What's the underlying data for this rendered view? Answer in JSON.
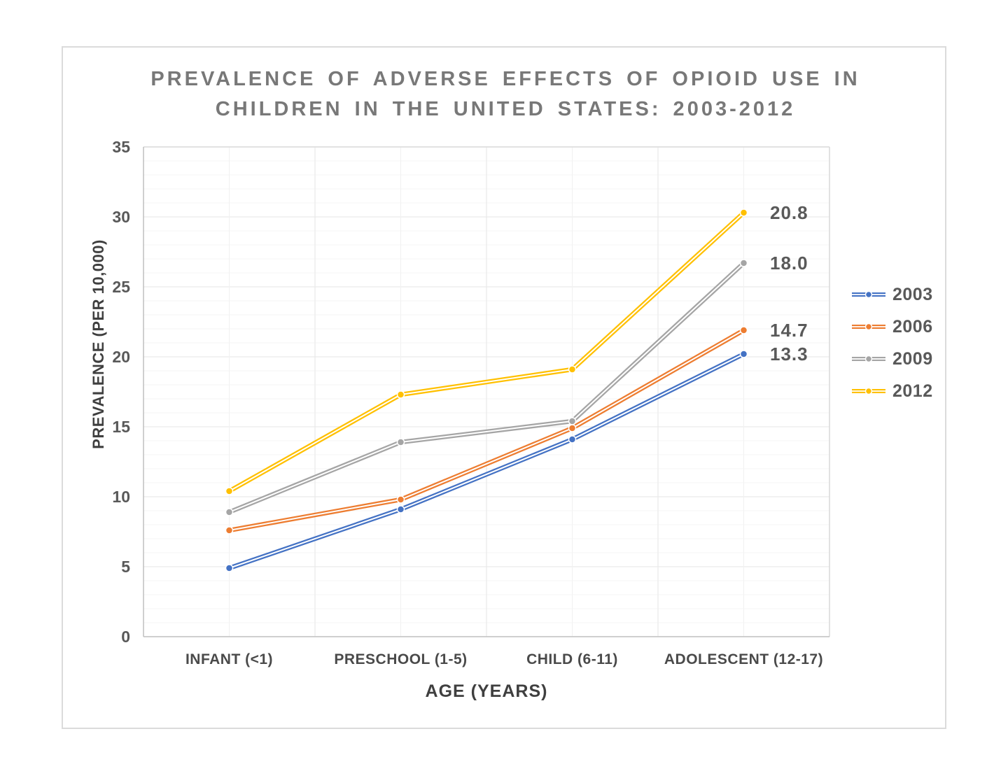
{
  "card": {
    "background": "#FFFFFF",
    "border_color": "#DBDBDB"
  },
  "chart_data": {
    "type": "line",
    "title_line1": "PREVALENCE OF ADVERSE EFFECTS OF OPIOID USE IN",
    "title_line2": "CHILDREN IN THE UNITED STATES: 2003-2012",
    "xlabel": "AGE (YEARS)",
    "ylabel": "PREVALENCE (PER 10,000)",
    "categories": [
      "INFANT (<1)",
      "PRESCHOOL (1-5)",
      "CHILD (6-11)",
      "ADOLESCENT (12-17)"
    ],
    "ylim": [
      0,
      35
    ],
    "ytick_values": [
      0,
      5,
      10,
      15,
      20,
      25,
      30,
      35
    ],
    "y_minor_step": 1,
    "grid": "on",
    "legend_position": "right",
    "series": [
      {
        "name": "2003",
        "color": "#4472C4",
        "values": [
          4.9,
          9.1,
          14.1,
          20.2
        ],
        "end_label": "13.3"
      },
      {
        "name": "2006",
        "color": "#ED7D31",
        "values": [
          7.6,
          9.8,
          14.9,
          21.9
        ],
        "end_label": "14.7"
      },
      {
        "name": "2009",
        "color": "#A5A5A5",
        "values": [
          8.9,
          13.9,
          15.4,
          26.7
        ],
        "end_label": "18.0"
      },
      {
        "name": "2012",
        "color": "#FFC000",
        "values": [
          10.4,
          17.3,
          19.1,
          30.3
        ],
        "end_label": "20.8"
      }
    ],
    "colors": {
      "title_text": "#787878",
      "tick_text": "#595959",
      "axis_title_text": "#3F3F3F",
      "axis_line": "#BFBFBF",
      "grid_major": "#E6E6E6",
      "grid_minor": "#F5F5F5",
      "grid_vertical_center": "#F1F1F1",
      "plot_border": "#D9D9D9"
    }
  }
}
